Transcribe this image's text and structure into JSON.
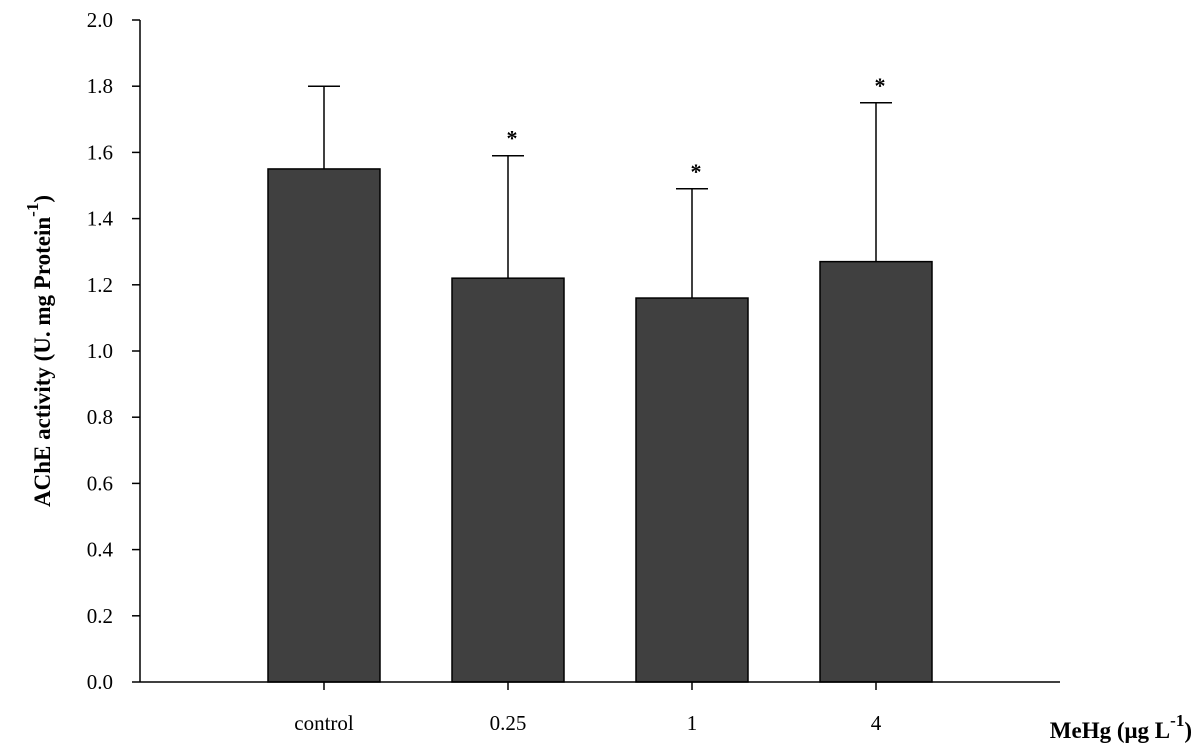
{
  "chart_data": {
    "type": "bar",
    "title": "",
    "xlabel": {
      "main": "MeHg (μg L",
      "sup": "-1",
      "end": ")"
    },
    "ylabel": {
      "main": "AChE activity (U. mg Protein",
      "sup": "-1",
      "end": ")"
    },
    "categories": [
      "control",
      "0.25",
      "1",
      "4"
    ],
    "values": [
      1.55,
      1.22,
      1.16,
      1.27
    ],
    "error_upper": [
      0.25,
      0.37,
      0.33,
      0.48
    ],
    "significance": [
      "",
      "*",
      "*",
      "*"
    ],
    "ylim": [
      0.0,
      2.0
    ],
    "yticks": [
      "0.0",
      "0.2",
      "0.4",
      "0.6",
      "0.8",
      "1.0",
      "1.2",
      "1.4",
      "1.6",
      "1.8",
      "2.0"
    ],
    "bar_color": "#404040",
    "grid": false
  }
}
